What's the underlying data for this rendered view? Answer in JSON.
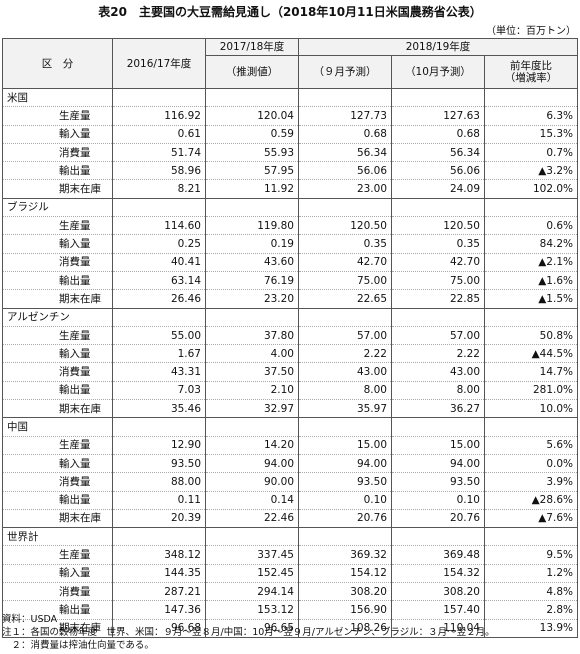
{
  "header": {
    "title": "表20　主要国の大豆需給見通し（2018年10月11日米国農務省公表）",
    "unit": "（単位：百万トン）"
  },
  "table": {
    "columns": {
      "category": "区　分",
      "y2016": "2016/17年度",
      "y2017": "2017/18年度",
      "y2017_note": "（推測値）",
      "y2018": "2018/19年度",
      "sep": "（９月予測）",
      "oct": "（10月予測）",
      "change": "前年度比",
      "change_note": "（増減率）"
    },
    "groups": [
      {
        "name": "米国",
        "rows": [
          [
            "生産量",
            "116.92",
            "120.04",
            "127.73",
            "127.63",
            "6.3%"
          ],
          [
            "輸入量",
            "0.61",
            "0.59",
            "0.68",
            "0.68",
            "15.3%"
          ],
          [
            "消費量",
            "51.74",
            "55.93",
            "56.34",
            "56.34",
            "0.7%"
          ],
          [
            "輸出量",
            "58.96",
            "57.95",
            "56.06",
            "56.06",
            "▲3.2%"
          ],
          [
            "期末在庫",
            "8.21",
            "11.92",
            "23.00",
            "24.09",
            "102.0%"
          ]
        ]
      },
      {
        "name": "ブラジル",
        "rows": [
          [
            "生産量",
            "114.60",
            "119.80",
            "120.50",
            "120.50",
            "0.6%"
          ],
          [
            "輸入量",
            "0.25",
            "0.19",
            "0.35",
            "0.35",
            "84.2%"
          ],
          [
            "消費量",
            "40.41",
            "43.60",
            "42.70",
            "42.70",
            "▲2.1%"
          ],
          [
            "輸出量",
            "63.14",
            "76.19",
            "75.00",
            "75.00",
            "▲1.6%"
          ],
          [
            "期末在庫",
            "26.46",
            "23.20",
            "22.65",
            "22.85",
            "▲1.5%"
          ]
        ]
      },
      {
        "name": "アルゼンチン",
        "rows": [
          [
            "生産量",
            "55.00",
            "37.80",
            "57.00",
            "57.00",
            "50.8%"
          ],
          [
            "輸入量",
            "1.67",
            "4.00",
            "2.22",
            "2.22",
            "▲44.5%"
          ],
          [
            "消費量",
            "43.31",
            "37.50",
            "43.00",
            "43.00",
            "14.7%"
          ],
          [
            "輸出量",
            "7.03",
            "2.10",
            "8.00",
            "8.00",
            "281.0%"
          ],
          [
            "期末在庫",
            "35.46",
            "32.97",
            "35.97",
            "36.27",
            "10.0%"
          ]
        ]
      },
      {
        "name": "中国",
        "rows": [
          [
            "生産量",
            "12.90",
            "14.20",
            "15.00",
            "15.00",
            "5.6%"
          ],
          [
            "輸入量",
            "93.50",
            "94.00",
            "94.00",
            "94.00",
            "0.0%"
          ],
          [
            "消費量",
            "88.00",
            "90.00",
            "93.50",
            "93.50",
            "3.9%"
          ],
          [
            "輸出量",
            "0.11",
            "0.14",
            "0.10",
            "0.10",
            "▲28.6%"
          ],
          [
            "期末在庫",
            "20.39",
            "22.46",
            "20.76",
            "20.76",
            "▲7.6%"
          ]
        ]
      },
      {
        "name": "世界計",
        "rows": [
          [
            "生産量",
            "348.12",
            "337.45",
            "369.32",
            "369.48",
            "9.5%"
          ],
          [
            "輸入量",
            "144.35",
            "152.45",
            "154.12",
            "154.32",
            "1.2%"
          ],
          [
            "消費量",
            "287.21",
            "294.14",
            "308.20",
            "308.20",
            "4.8%"
          ],
          [
            "輸出量",
            "147.36",
            "153.12",
            "156.90",
            "157.40",
            "2.8%"
          ],
          [
            "期末在庫",
            "96.68",
            "96.65",
            "108.26",
            "110.04",
            "13.9%"
          ]
        ]
      }
    ]
  },
  "notes": [
    "資料：USDA",
    "注１：各国の穀物年度　世界、米国：９月～翌８月/中国：10月～翌９月/アルゼンチン、ブラジル：３月～翌２月。",
    "　２：消費量は搾油仕向量である。"
  ]
}
